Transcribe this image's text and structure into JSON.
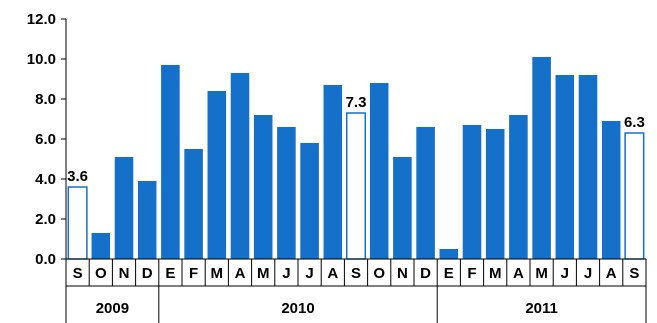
{
  "chart_data": {
    "type": "bar",
    "title": "",
    "xlabel": "",
    "ylabel": "",
    "ylim": [
      0,
      12
    ],
    "yticks": [
      "0.0",
      "2.0",
      "4.0",
      "6.0",
      "8.0",
      "10.0",
      "12.0"
    ],
    "grid": false,
    "colors": {
      "filled": "#1570C9",
      "outline": "#1570C9",
      "hollow_fill": "#ffffff"
    },
    "categories": [
      "S",
      "O",
      "N",
      "D",
      "E",
      "F",
      "M",
      "A",
      "M",
      "J",
      "J",
      "A",
      "S",
      "O",
      "N",
      "D",
      "E",
      "F",
      "M",
      "A",
      "M",
      "J",
      "J",
      "A",
      "S"
    ],
    "values": [
      3.6,
      1.3,
      5.1,
      3.9,
      9.7,
      5.5,
      8.4,
      9.3,
      7.2,
      6.6,
      5.8,
      8.7,
      7.3,
      8.8,
      5.1,
      6.6,
      0.5,
      6.7,
      6.5,
      7.2,
      10.1,
      9.2,
      9.2,
      6.9,
      6.3
    ],
    "hollow": [
      true,
      false,
      false,
      false,
      false,
      false,
      false,
      false,
      false,
      false,
      false,
      false,
      true,
      false,
      false,
      false,
      false,
      false,
      false,
      false,
      false,
      false,
      false,
      false,
      true
    ],
    "data_labels": [
      {
        "index": 0,
        "text": "3.6"
      },
      {
        "index": 12,
        "text": "7.3"
      },
      {
        "index": 24,
        "text": "6.3"
      }
    ],
    "years": [
      {
        "label": "2009",
        "from": 0,
        "to": 3
      },
      {
        "label": "2010",
        "from": 4,
        "to": 15
      },
      {
        "label": "2011",
        "from": 16,
        "to": 24
      }
    ]
  }
}
